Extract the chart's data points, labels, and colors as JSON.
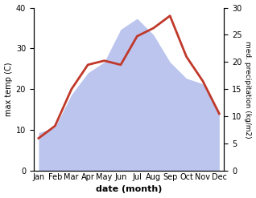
{
  "months": [
    "Jan",
    "Feb",
    "Mar",
    "Apr",
    "May",
    "Jun",
    "Jul",
    "Aug",
    "Sep",
    "Oct",
    "Nov",
    "Dec"
  ],
  "max_temp": [
    8,
    11,
    20,
    26,
    27,
    26,
    33,
    35,
    38,
    28,
    22,
    14
  ],
  "precipitation": [
    7,
    8,
    14,
    18,
    20,
    26,
    28,
    25,
    20,
    17,
    16,
    11
  ],
  "temp_color": "#c0392b",
  "precip_fill_color": "#bbc5ee",
  "temp_ylim": [
    0,
    40
  ],
  "precip_ylim": [
    0,
    30
  ],
  "temp_yticks": [
    0,
    10,
    20,
    30,
    40
  ],
  "precip_yticks": [
    0,
    5,
    10,
    15,
    20,
    25,
    30
  ],
  "xlabel": "date (month)",
  "ylabel_left": "max temp (C)",
  "ylabel_right": "med. precipitation (kg/m2)",
  "background_color": "#ffffff",
  "line_width": 2.0
}
